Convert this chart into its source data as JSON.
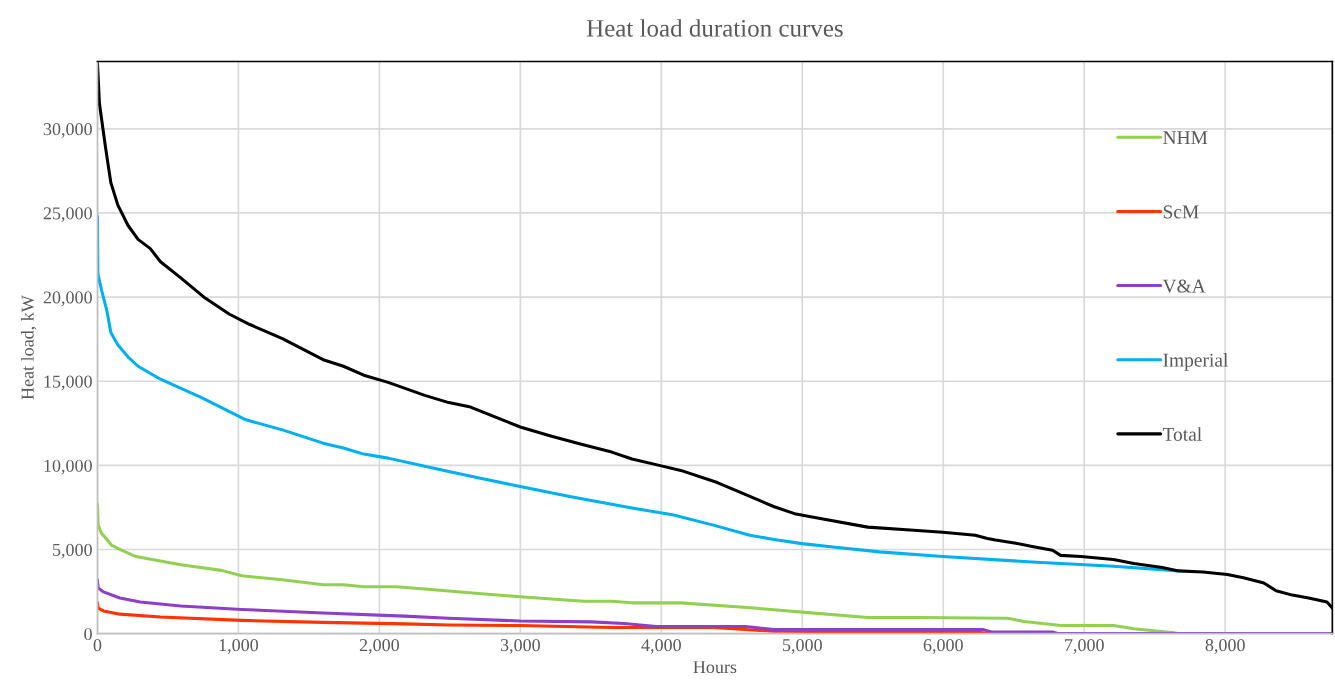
{
  "chart_data": {
    "type": "line",
    "title": "Heat load duration curves",
    "xlabel": "Hours",
    "ylabel": "Heat load, kW",
    "xlim": [
      0,
      8760
    ],
    "ylim": [
      0,
      34000
    ],
    "xticks": [
      0,
      {
        "value": 1000,
        "label": "1,000"
      },
      {
        "value": 2000,
        "label": "2,000"
      },
      {
        "value": 3000,
        "label": "3,000"
      },
      {
        "value": 4000,
        "label": "4,000"
      },
      {
        "value": 5000,
        "label": "5,000"
      },
      {
        "value": 6000,
        "label": "6,000"
      },
      {
        "value": 7000,
        "label": "7,000"
      },
      {
        "value": 8000,
        "label": "8,000"
      }
    ],
    "yticks": [
      0,
      {
        "value": 5000,
        "label": "5,000"
      },
      {
        "value": 10000,
        "label": "10,000"
      },
      {
        "value": 15000,
        "label": "15,000"
      },
      {
        "value": 20000,
        "label": "20,000"
      },
      {
        "value": 25000,
        "label": "25,000"
      },
      {
        "value": 30000,
        "label": "30,000"
      }
    ],
    "grid": true,
    "legend": "top right",
    "marker": "none",
    "line_style": "solid",
    "series": [
      {
        "name": "NHM",
        "color": "#92d050",
        "x": [
          0,
          5,
          29,
          101,
          159,
          274,
          389,
          591,
          880,
          1024,
          1312,
          1601,
          1745,
          1889,
          2120,
          2322,
          2492,
          2638,
          2999,
          3446,
          3648,
          3792,
          4138,
          4657,
          4997,
          5464,
          5823,
          6457,
          6573,
          6833,
          7207,
          7352,
          7640,
          7669
        ],
        "values": [
          7710,
          6450,
          5970,
          5250,
          5010,
          4580,
          4410,
          4090,
          3760,
          3440,
          3200,
          2910,
          2910,
          2790,
          2790,
          2650,
          2530,
          2430,
          2190,
          1930,
          1930,
          1830,
          1830,
          1520,
          1280,
          960,
          960,
          920,
          720,
          480,
          480,
          290,
          50,
          0
        ]
      },
      {
        "name": "ScM",
        "color": "#ff3300",
        "x": [
          0,
          5,
          43,
          159,
          447,
          1024,
          1601,
          2177,
          2492,
          2999,
          3648,
          4369,
          4801,
          5548,
          6227,
          6342
        ],
        "values": [
          1830,
          1520,
          1350,
          1160,
          990,
          790,
          670,
          580,
          510,
          480,
          360,
          360,
          140,
          100,
          100,
          0
        ]
      },
      {
        "name": "V&A",
        "color": "#8e3fc8",
        "x": [
          0,
          5,
          43,
          159,
          303,
          591,
          1024,
          1601,
          2177,
          2492,
          2999,
          3503,
          3734,
          3965,
          4599,
          4801,
          5548,
          6285,
          6342,
          6775,
          6818,
          8760
        ],
        "values": [
          3180,
          2720,
          2480,
          2120,
          1880,
          1640,
          1440,
          1230,
          1040,
          920,
          750,
          700,
          600,
          430,
          430,
          240,
          240,
          240,
          100,
          100,
          0,
          0
        ]
      },
      {
        "name": "Imperial",
        "color": "#00b0f0",
        "x": [
          0,
          3,
          29,
          66,
          95,
          144,
          216,
          288,
          447,
          735,
          937,
          1053,
          1312,
          1601,
          1745,
          1889,
          2062,
          2322,
          2492,
          2725,
          2999,
          3359,
          3792,
          4080,
          4369,
          4628,
          4801,
          4997,
          5234,
          5548,
          5996,
          6631,
          7207,
          7669
        ],
        "values": [
          24800,
          21380,
          20420,
          19220,
          17890,
          17170,
          16450,
          15890,
          15120,
          14040,
          13200,
          12710,
          12110,
          11320,
          11030,
          10670,
          10430,
          9950,
          9630,
          9220,
          8740,
          8140,
          7460,
          7060,
          6450,
          5850,
          5590,
          5350,
          5130,
          4860,
          4580,
          4260,
          4000,
          3730
        ]
      },
      {
        "name": "Total",
        "color": "#000000",
        "x": [
          0,
          14,
          58,
          95,
          144,
          216,
          288,
          375,
          447,
          591,
          764,
          937,
          1081,
          1312,
          1601,
          1745,
          1889,
          2062,
          2177,
          2322,
          2492,
          2638,
          2999,
          3215,
          3446,
          3648,
          3792,
          4000,
          4138,
          4397,
          4599,
          4801,
          4945,
          5147,
          5464,
          5765,
          5996,
          6227,
          6313,
          6371,
          6515,
          6631,
          6775,
          6833,
          6977,
          7207,
          7352,
          7553,
          7669,
          7842,
          8015,
          8130,
          8274,
          8361,
          8476,
          8592,
          8722,
          8760
        ],
        "values": [
          33900,
          31500,
          28850,
          26800,
          25480,
          24270,
          23430,
          22880,
          22100,
          21140,
          19940,
          18980,
          18370,
          17530,
          16280,
          15890,
          15360,
          14930,
          14590,
          14160,
          13730,
          13490,
          12280,
          11750,
          11220,
          10790,
          10380,
          9970,
          9700,
          8980,
          8260,
          7540,
          7130,
          6810,
          6330,
          6160,
          6020,
          5850,
          5660,
          5560,
          5370,
          5180,
          4960,
          4650,
          4580,
          4410,
          4170,
          3930,
          3730,
          3660,
          3520,
          3320,
          3010,
          2550,
          2290,
          2120,
          1880,
          1520
        ]
      }
    ]
  }
}
